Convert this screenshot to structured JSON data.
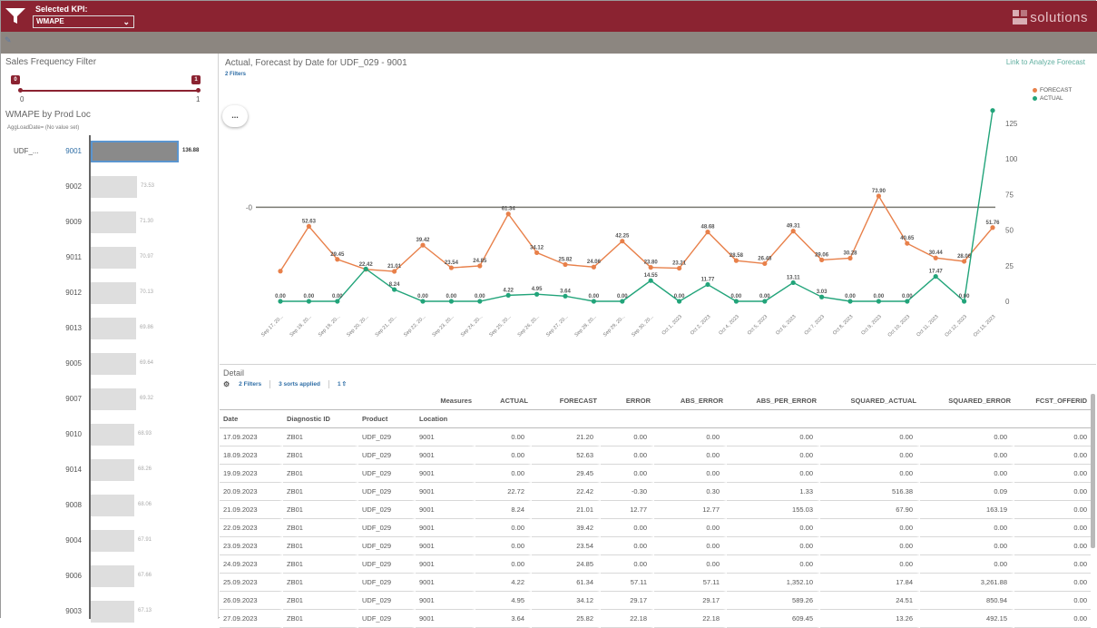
{
  "header": {
    "kpi_label": "Selected KPI:",
    "kpi_value": "WMAPE",
    "brand_text": "solutions",
    "colors": {
      "header_bg": "#8b2331",
      "toolbar_bg": "#8c8680"
    }
  },
  "left_panel": {
    "sales_frequency_title": "Sales Frequency Filter",
    "slider": {
      "min_label": "0",
      "max_label": "1",
      "low_value": "0",
      "high_value": "1"
    },
    "wmape_title": "WMAPE by Prod Loc",
    "agg_note": "AggLoadDate= (No value set)",
    "rows": [
      {
        "product": "UDF_...",
        "location": "9001",
        "value": "136.88",
        "fraction": 0.7,
        "selected": true
      },
      {
        "product": "",
        "location": "9002",
        "value": "73.53",
        "fraction": 0.37
      },
      {
        "product": "",
        "location": "9009",
        "value": "71.30",
        "fraction": 0.36
      },
      {
        "product": "",
        "location": "9011",
        "value": "70.97",
        "fraction": 0.36
      },
      {
        "product": "",
        "location": "9012",
        "value": "70.13",
        "fraction": 0.36
      },
      {
        "product": "",
        "location": "9013",
        "value": "69.86",
        "fraction": 0.36
      },
      {
        "product": "",
        "location": "9005",
        "value": "69.64",
        "fraction": 0.36
      },
      {
        "product": "",
        "location": "9007",
        "value": "69.32",
        "fraction": 0.36
      },
      {
        "product": "",
        "location": "9010",
        "value": "68.93",
        "fraction": 0.35
      },
      {
        "product": "",
        "location": "9014",
        "value": "68.26",
        "fraction": 0.35
      },
      {
        "product": "",
        "location": "9008",
        "value": "68.06",
        "fraction": 0.35
      },
      {
        "product": "",
        "location": "9004",
        "value": "67.91",
        "fraction": 0.35
      },
      {
        "product": "",
        "location": "9006",
        "value": "67.66",
        "fraction": 0.35
      },
      {
        "product": "",
        "location": "9003",
        "value": "67.13",
        "fraction": 0.35
      }
    ]
  },
  "chart_panel": {
    "title": "Actual, Forecast by Date for UDF_029 - 9001",
    "link": "Link to Analyze Forecast",
    "filters_badge": "2 Filters",
    "more_button": "..."
  },
  "chart_data": {
    "type": "line",
    "x": [
      "Sep 17, 20...",
      "Sep 18, 20...",
      "Sep 19, 20...",
      "Sep 20, 20...",
      "Sep 21, 20...",
      "Sep 22, 20...",
      "Sep 23, 20...",
      "Sep 24, 20...",
      "Sep 25, 20...",
      "Sep 26, 20...",
      "Sep 27, 20...",
      "Sep 28, 20...",
      "Sep 29, 20...",
      "Sep 30, 20...",
      "Oct 1, 2023",
      "Oct 2, 2023",
      "Oct 4, 2023",
      "Oct 5, 2023",
      "Oct 6, 2023",
      "Oct 7, 2023",
      "Oct 8, 2023",
      "Oct 9, 2023",
      "Oct 10, 2023",
      "Oct 11, 2023",
      "Oct 12, 2023",
      "Oct 13, 2023"
    ],
    "series": [
      {
        "name": "FORECAST",
        "color": "#e8804a",
        "values": [
          21.2,
          52.63,
          29.45,
          22.42,
          21.01,
          39.42,
          23.54,
          24.85,
          61.34,
          34.12,
          25.82,
          24.06,
          42.25,
          23.8,
          23.21,
          48.68,
          28.58,
          26.48,
          49.31,
          29.06,
          30.28,
          73.9,
          40.65,
          30.44,
          28.06,
          51.76
        ],
        "labels": [
          "",
          "52.63",
          "29.45",
          "22.42",
          "21.01",
          "39.42",
          "23.54",
          "24.85",
          "61.34",
          "34.12",
          "25.82",
          "24.06",
          "42.25",
          "23.80",
          "23.21",
          "48.68",
          "28.58",
          "26.48",
          "49.31",
          "29.06",
          "30.28",
          "73.90",
          "40.65",
          "30.44",
          "28.06",
          "51.76"
        ]
      },
      {
        "name": "ACTUAL",
        "color": "#22a47a",
        "values": [
          0.0,
          0.0,
          0.0,
          22.72,
          8.24,
          0.0,
          0.0,
          0.0,
          4.22,
          4.95,
          3.64,
          0.0,
          0.0,
          14.55,
          0.0,
          11.77,
          0.0,
          0.0,
          13.11,
          3.03,
          0.0,
          0.0,
          0.0,
          17.47,
          0.0,
          134.0
        ],
        "labels": [
          "0.00",
          "0.00",
          "0.00",
          "",
          "8.24",
          "0.00",
          "0.00",
          "0.00",
          "4.22",
          "4.95",
          "3.64",
          "0.00",
          "0.00",
          "14.55",
          "0.00",
          "11.77",
          "0.00",
          "0.00",
          "13.11",
          "3.03",
          "0.00",
          "0.00",
          "0.00",
          "17.47",
          "0.00",
          ""
        ]
      }
    ],
    "y_ticks": [
      "0",
      "25",
      "50",
      "75",
      "100",
      "125"
    ],
    "ylim": [
      0,
      137
    ],
    "reference_line": {
      "value": 66,
      "label": "-0"
    },
    "legend_position": "top-right",
    "grid": false
  },
  "detail": {
    "title": "Detail",
    "filters": "2 Filters",
    "sorts": "3 sorts applied",
    "export_count": "1",
    "measures_header": "Measures",
    "dim_columns": [
      "Date",
      "Diagnostic ID",
      "Product",
      "Location"
    ],
    "measure_columns": [
      "ACTUAL",
      "FORECAST",
      "ERROR",
      "ABS_ERROR",
      "ABS_PER_ERROR",
      "SQUARED_ACTUAL",
      "SQUARED_ERROR",
      "FCST_OFFERID"
    ],
    "rows": [
      [
        "17.09.2023",
        "ZB01",
        "UDF_029",
        "9001",
        "0.00",
        "21.20",
        "0.00",
        "0.00",
        "0.00",
        "0.00",
        "0.00",
        "0.00"
      ],
      [
        "18.09.2023",
        "ZB01",
        "UDF_029",
        "9001",
        "0.00",
        "52.63",
        "0.00",
        "0.00",
        "0.00",
        "0.00",
        "0.00",
        "0.00"
      ],
      [
        "19.09.2023",
        "ZB01",
        "UDF_029",
        "9001",
        "0.00",
        "29.45",
        "0.00",
        "0.00",
        "0.00",
        "0.00",
        "0.00",
        "0.00"
      ],
      [
        "20.09.2023",
        "ZB01",
        "UDF_029",
        "9001",
        "22.72",
        "22.42",
        "-0.30",
        "0.30",
        "1.33",
        "516.38",
        "0.09",
        "0.00"
      ],
      [
        "21.09.2023",
        "ZB01",
        "UDF_029",
        "9001",
        "8.24",
        "21.01",
        "12.77",
        "12.77",
        "155.03",
        "67.90",
        "163.19",
        "0.00"
      ],
      [
        "22.09.2023",
        "ZB01",
        "UDF_029",
        "9001",
        "0.00",
        "39.42",
        "0.00",
        "0.00",
        "0.00",
        "0.00",
        "0.00",
        "0.00"
      ],
      [
        "23.09.2023",
        "ZB01",
        "UDF_029",
        "9001",
        "0.00",
        "23.54",
        "0.00",
        "0.00",
        "0.00",
        "0.00",
        "0.00",
        "0.00"
      ],
      [
        "24.09.2023",
        "ZB01",
        "UDF_029",
        "9001",
        "0.00",
        "24.85",
        "0.00",
        "0.00",
        "0.00",
        "0.00",
        "0.00",
        "0.00"
      ],
      [
        "25.09.2023",
        "ZB01",
        "UDF_029",
        "9001",
        "4.22",
        "61.34",
        "57.11",
        "57.11",
        "1,352.10",
        "17.84",
        "3,261.88",
        "0.00"
      ],
      [
        "26.09.2023",
        "ZB01",
        "UDF_029",
        "9001",
        "4.95",
        "34.12",
        "29.17",
        "29.17",
        "589.26",
        "24.51",
        "850.94",
        "0.00"
      ],
      [
        "27.09.2023",
        "ZB01",
        "UDF_029",
        "9001",
        "3.64",
        "25.82",
        "22.18",
        "22.18",
        "609.45",
        "13.26",
        "492.15",
        "0.00"
      ]
    ]
  }
}
